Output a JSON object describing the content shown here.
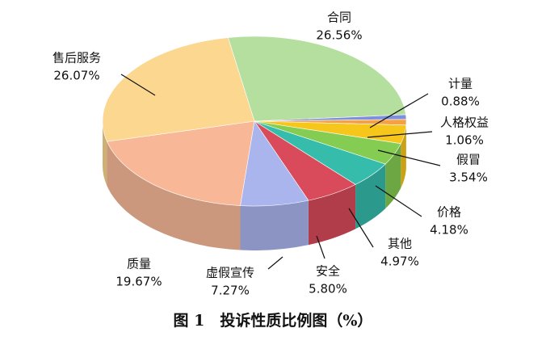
{
  "chart_data": {
    "type": "pie",
    "title": "图 1　投诉性质比例图（%）",
    "categories": [
      "合同",
      "计量",
      "人格权益",
      "假冒",
      "价格",
      "其他",
      "安全",
      "虚假宣传",
      "质量",
      "售后服务"
    ],
    "values": [
      26.56,
      0.88,
      1.06,
      3.54,
      4.18,
      4.97,
      5.8,
      7.27,
      19.67,
      26.07
    ],
    "value_labels": [
      "26.56%",
      "0.88%",
      "1.06%",
      "3.54%",
      "4.18%",
      "4.97%",
      "5.80%",
      "7.27%",
      "19.67%",
      "26.07%"
    ],
    "colors": [
      "#b4df9e",
      "#7f8fdc",
      "#f5a142",
      "#f7c61a",
      "#84cc52",
      "#35bcab",
      "#d94a5a",
      "#aab5ee",
      "#f8b898",
      "#fbd78f"
    ]
  }
}
